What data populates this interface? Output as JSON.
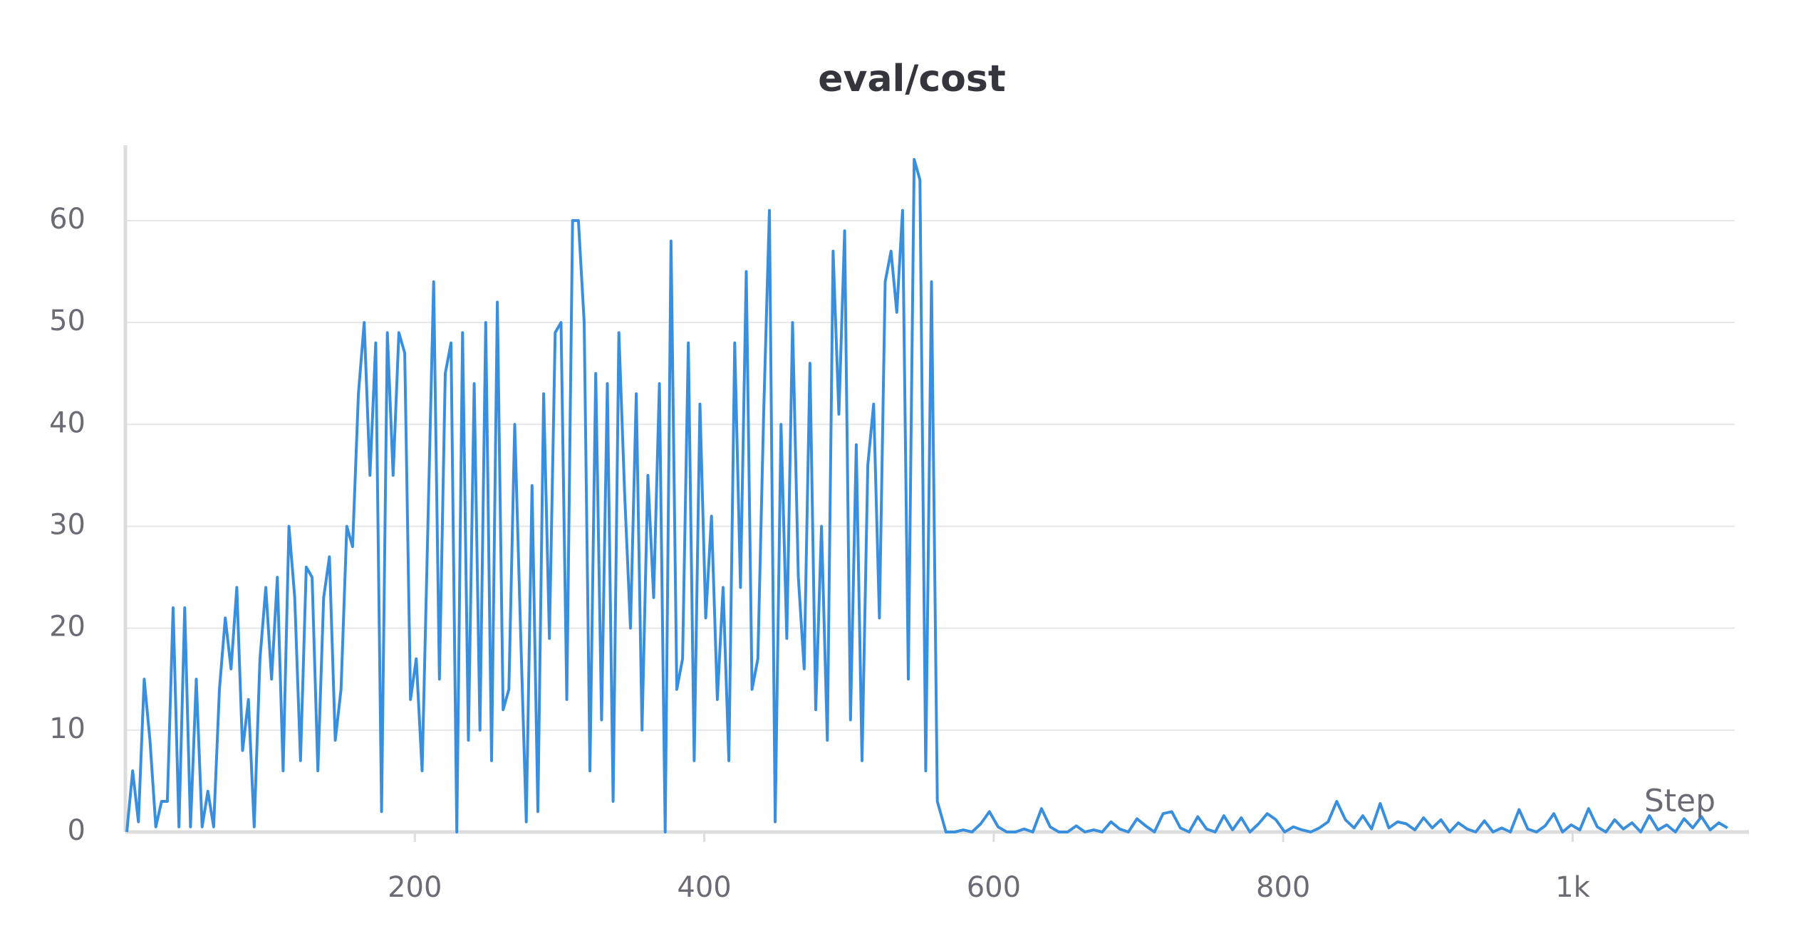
{
  "chart_data": {
    "type": "line",
    "title": "eval/cost",
    "x_label": "Step",
    "x": [
      1,
      5,
      9,
      13,
      17,
      21,
      25,
      29,
      33,
      37,
      41,
      45,
      49,
      53,
      57,
      61,
      65,
      69,
      73,
      77,
      81,
      85,
      89,
      93,
      97,
      101,
      105,
      109,
      113,
      117,
      121,
      125,
      129,
      133,
      137,
      141,
      145,
      149,
      153,
      157,
      161,
      165,
      169,
      173,
      177,
      181,
      185,
      189,
      193,
      197,
      201,
      205,
      209,
      213,
      217,
      221,
      225,
      229,
      233,
      237,
      241,
      245,
      249,
      253,
      257,
      261,
      265,
      269,
      273,
      277,
      281,
      285,
      289,
      293,
      297,
      301,
      305,
      309,
      313,
      317,
      321,
      325,
      329,
      333,
      337,
      341,
      345,
      349,
      353,
      357,
      361,
      365,
      369,
      373,
      377,
      381,
      385,
      389,
      393,
      397,
      401,
      405,
      409,
      413,
      417,
      421,
      425,
      429,
      433,
      437,
      441,
      445,
      449,
      453,
      457,
      461,
      465,
      469,
      473,
      477,
      481,
      485,
      489,
      493,
      497,
      501,
      505,
      509,
      513,
      517,
      521,
      525,
      529,
      533,
      537,
      541,
      545,
      549,
      553,
      557,
      561,
      567,
      573,
      579,
      585,
      591,
      597,
      603,
      609,
      615,
      621,
      627,
      633,
      639,
      645,
      651,
      657,
      663,
      669,
      675,
      681,
      687,
      693,
      699,
      705,
      711,
      717,
      723,
      729,
      735,
      741,
      747,
      753,
      759,
      765,
      771,
      777,
      783,
      789,
      795,
      801,
      807,
      813,
      819,
      825,
      831,
      837,
      843,
      849,
      855,
      861,
      867,
      873,
      879,
      885,
      891,
      897,
      903,
      909,
      915,
      921,
      927,
      933,
      939,
      945,
      951,
      957,
      963,
      969,
      975,
      981,
      987,
      993,
      999,
      1005,
      1011,
      1017,
      1023,
      1029,
      1035,
      1041,
      1047,
      1053,
      1059,
      1065,
      1071,
      1077,
      1083,
      1089,
      1095,
      1101,
      1107
    ],
    "series": [
      {
        "name": "eval/cost",
        "color": "#3a8fdc",
        "values": [
          0,
          6,
          1,
          15,
          9,
          0.5,
          3,
          3,
          22,
          0.5,
          22,
          0.5,
          15,
          0.5,
          4,
          0.5,
          14,
          21,
          16,
          24,
          8,
          13,
          0.5,
          17,
          24,
          15,
          25,
          6,
          30,
          23,
          7,
          26,
          25,
          6,
          23,
          27,
          9,
          14,
          30,
          28,
          43,
          50,
          35,
          48,
          2,
          49,
          35,
          49,
          47,
          13,
          17,
          6,
          30,
          54,
          15,
          45,
          48,
          0,
          49,
          9,
          44,
          10,
          50,
          7,
          52,
          12,
          14,
          40,
          20,
          1,
          34,
          2,
          43,
          19,
          49,
          50,
          13,
          60,
          60,
          50,
          6,
          45,
          11,
          44,
          3,
          49,
          33,
          20,
          43,
          10,
          35,
          23,
          44,
          0,
          58,
          14,
          17,
          48,
          7,
          42,
          21,
          31,
          13,
          24,
          7,
          48,
          24,
          55,
          14,
          17,
          41,
          61,
          1,
          40,
          19,
          50,
          25,
          16,
          46,
          12,
          30,
          9,
          57,
          41,
          59,
          11,
          38,
          7,
          36,
          42,
          21,
          54,
          57,
          51,
          61,
          15,
          66,
          64,
          6,
          54,
          3,
          0,
          0,
          0.2,
          0,
          0.8,
          2,
          0.5,
          0,
          0,
          0.3,
          0,
          2.3,
          0.5,
          0,
          0,
          0.6,
          0,
          0.2,
          0,
          1,
          0.3,
          0,
          1.3,
          0.6,
          0,
          1.8,
          2,
          0.4,
          0,
          1.5,
          0.3,
          0,
          1.6,
          0.2,
          1.4,
          0,
          0.8,
          1.8,
          1.2,
          0,
          0.5,
          0.2,
          0,
          0.4,
          1,
          3,
          1.2,
          0.4,
          1.6,
          0.3,
          2.8,
          0.4,
          1,
          0.8,
          0.2,
          1.4,
          0.4,
          1.2,
          0,
          0.9,
          0.3,
          0,
          1.1,
          0,
          0.4,
          0,
          2.2,
          0.3,
          0,
          0.6,
          1.8,
          0,
          0.7,
          0.2,
          2.3,
          0.5,
          0,
          1.2,
          0.3,
          0.9,
          0,
          1.6,
          0.2,
          0.7,
          0,
          1.3,
          0.4,
          1.5,
          0.2,
          0.9,
          0.4
        ]
      }
    ],
    "xlim": [
      0,
      1112
    ],
    "xticks": [
      200,
      400,
      600,
      800,
      {
        "value": 1000,
        "label": "1k"
      }
    ],
    "ylim": [
      0,
      67.4
    ],
    "yticks": [
      0,
      10,
      20,
      30,
      40,
      50,
      60
    ],
    "grid": true
  }
}
